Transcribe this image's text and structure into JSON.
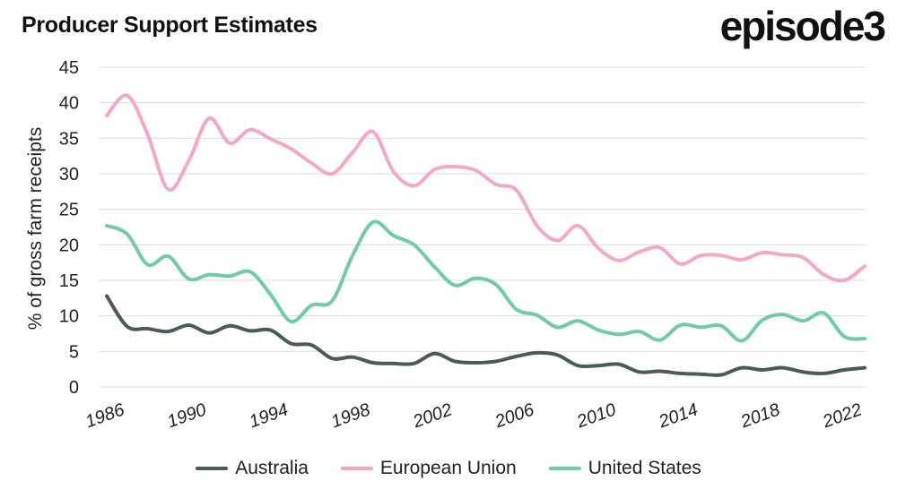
{
  "header": {
    "title": "Producer Support Estimates",
    "brand": "episode3"
  },
  "chart_data": {
    "type": "line",
    "title": "Producer Support Estimates",
    "xlabel": "",
    "ylabel": "% of gross farm receipts",
    "xlim": [
      1986,
      2023
    ],
    "ylim": [
      0,
      45
    ],
    "yticks": [
      0,
      5,
      10,
      15,
      20,
      25,
      30,
      35,
      40,
      45
    ],
    "xticks": [
      1986,
      1990,
      1994,
      1998,
      2002,
      2006,
      2010,
      2014,
      2018,
      2022
    ],
    "grid": true,
    "legend_position": "bottom",
    "x": [
      1986,
      1987,
      1988,
      1989,
      1990,
      1991,
      1992,
      1993,
      1994,
      1995,
      1996,
      1997,
      1998,
      1999,
      2000,
      2001,
      2002,
      2003,
      2004,
      2005,
      2006,
      2007,
      2008,
      2009,
      2010,
      2011,
      2012,
      2013,
      2014,
      2015,
      2016,
      2017,
      2018,
      2019,
      2020,
      2021,
      2022,
      2023
    ],
    "series": [
      {
        "name": "Australia",
        "color": "#4b5a5c",
        "values": [
          12.8,
          8.5,
          8.2,
          7.8,
          8.7,
          7.6,
          8.6,
          7.9,
          8.0,
          6.1,
          5.9,
          4.0,
          4.2,
          3.4,
          3.3,
          3.3,
          4.7,
          3.6,
          3.4,
          3.6,
          4.3,
          4.8,
          4.5,
          3.0,
          3.0,
          3.2,
          2.1,
          2.2,
          1.9,
          1.8,
          1.7,
          2.7,
          2.4,
          2.7,
          2.1,
          1.9,
          2.4,
          2.7
        ]
      },
      {
        "name": "European Union",
        "color": "#f4a7cb",
        "values": [
          38.2,
          41.0,
          35.5,
          27.8,
          31.8,
          37.8,
          34.3,
          36.2,
          34.9,
          33.5,
          31.5,
          30.0,
          33.0,
          35.9,
          30.3,
          28.3,
          30.6,
          31.0,
          30.5,
          28.5,
          27.7,
          22.7,
          20.6,
          22.7,
          19.5,
          17.8,
          19.0,
          19.6,
          17.3,
          18.5,
          18.5,
          17.9,
          18.9,
          18.6,
          18.2,
          15.8,
          15.0,
          17.0
        ]
      },
      {
        "name": "United States",
        "color": "#6fcba8",
        "values": [
          22.7,
          21.5,
          17.2,
          18.4,
          15.2,
          15.8,
          15.6,
          16.2,
          13.0,
          9.2,
          11.5,
          12.1,
          18.5,
          23.2,
          21.3,
          20.0,
          16.9,
          14.3,
          15.3,
          14.4,
          10.9,
          10.1,
          8.4,
          9.3,
          8.0,
          7.4,
          7.8,
          6.6,
          8.7,
          8.4,
          8.6,
          6.5,
          9.4,
          10.2,
          9.3,
          10.4,
          7.1,
          6.8
        ]
      }
    ]
  }
}
